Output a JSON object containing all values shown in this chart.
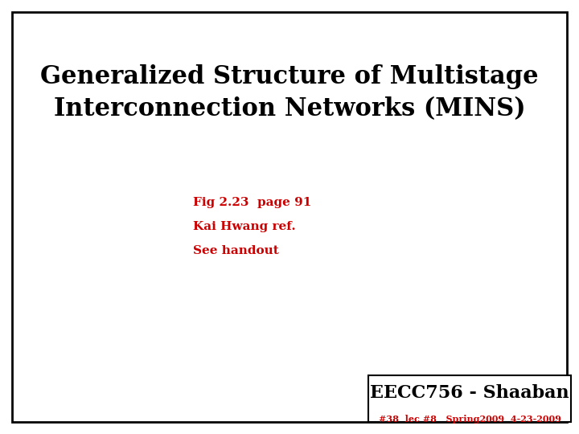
{
  "title_line1": "Generalized Structure of Multistage",
  "title_line2": "Interconnection Networks (MINS)",
  "line1": "Fig 2.23  page 91",
  "line2": "Kai Hwang ref.",
  "line3": "See handout",
  "footer_main": "EECC756 - Shaaban",
  "footer_sub": "#38  lec #8   Spring2009  4-23-2009",
  "title_color": "#000000",
  "body_color": "#cc0000",
  "footer_main_color": "#000000",
  "footer_sub_color": "#cc0000",
  "bg_color": "#ffffff",
  "border_color": "#000000",
  "title_fontsize": 22,
  "body_fontsize": 11,
  "footer_main_fontsize": 16,
  "footer_sub_fontsize": 8
}
